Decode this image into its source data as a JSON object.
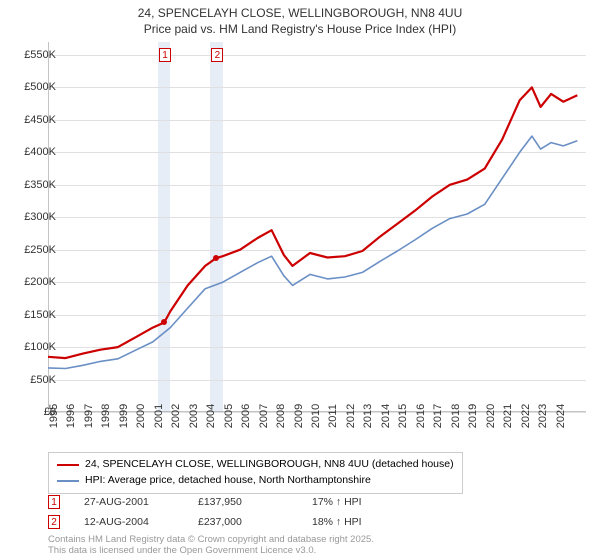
{
  "title_line1": "24, SPENCELAYH CLOSE, WELLINGBOROUGH, NN8 4UU",
  "title_line2": "Price paid vs. HM Land Registry's House Price Index (HPI)",
  "chart": {
    "type": "line",
    "background_color": "#ffffff",
    "grid_color": "#e0e0e0",
    "axis_color": "#888888",
    "x_range": [
      1995,
      2025.8
    ],
    "y_range": [
      0,
      570000
    ],
    "y_ticks": [
      0,
      50000,
      100000,
      150000,
      200000,
      250000,
      300000,
      350000,
      400000,
      450000,
      500000,
      550000
    ],
    "y_tick_labels": [
      "£0",
      "£50K",
      "£100K",
      "£150K",
      "£200K",
      "£250K",
      "£300K",
      "£350K",
      "£400K",
      "£450K",
      "£500K",
      "£550K"
    ],
    "x_ticks": [
      1995,
      1996,
      1997,
      1998,
      1999,
      2000,
      2001,
      2002,
      2003,
      2004,
      2005,
      2006,
      2007,
      2008,
      2009,
      2010,
      2011,
      2012,
      2013,
      2014,
      2015,
      2016,
      2017,
      2018,
      2019,
      2020,
      2021,
      2022,
      2023,
      2024
    ],
    "x_tick_labels": [
      "1995",
      "1996",
      "1997",
      "1998",
      "1999",
      "2000",
      "2001",
      "2002",
      "2003",
      "2004",
      "2005",
      "2006",
      "2007",
      "2008",
      "2009",
      "2010",
      "2011",
      "2012",
      "2013",
      "2014",
      "2015",
      "2016",
      "2017",
      "2018",
      "2019",
      "2020",
      "2021",
      "2022",
      "2023",
      "2024"
    ],
    "series": [
      {
        "name": "price_paid",
        "label": "24, SPENCELAYH CLOSE, WELLINGBOROUGH, NN8 4UU (detached house)",
        "color": "#cc0000",
        "width": 2.2,
        "points": [
          [
            1995.0,
            85000
          ],
          [
            1996.0,
            83000
          ],
          [
            1997.0,
            90000
          ],
          [
            1998.0,
            96000
          ],
          [
            1999.0,
            100000
          ],
          [
            2000.0,
            115000
          ],
          [
            2001.0,
            130000
          ],
          [
            2001.65,
            137950
          ],
          [
            2002.0,
            155000
          ],
          [
            2003.0,
            195000
          ],
          [
            2004.0,
            225000
          ],
          [
            2004.62,
            237000
          ],
          [
            2005.0,
            240000
          ],
          [
            2006.0,
            250000
          ],
          [
            2007.0,
            268000
          ],
          [
            2007.8,
            280000
          ],
          [
            2008.5,
            242000
          ],
          [
            2009.0,
            225000
          ],
          [
            2010.0,
            245000
          ],
          [
            2011.0,
            238000
          ],
          [
            2012.0,
            240000
          ],
          [
            2013.0,
            248000
          ],
          [
            2014.0,
            270000
          ],
          [
            2015.0,
            290000
          ],
          [
            2016.0,
            310000
          ],
          [
            2017.0,
            332000
          ],
          [
            2018.0,
            350000
          ],
          [
            2019.0,
            358000
          ],
          [
            2020.0,
            375000
          ],
          [
            2021.0,
            420000
          ],
          [
            2022.0,
            480000
          ],
          [
            2022.7,
            500000
          ],
          [
            2023.2,
            470000
          ],
          [
            2023.8,
            490000
          ],
          [
            2024.5,
            478000
          ],
          [
            2025.3,
            488000
          ]
        ]
      },
      {
        "name": "hpi",
        "label": "HPI: Average price, detached house, North Northamptonshire",
        "color": "#6a8fc5",
        "width": 1.6,
        "points": [
          [
            1995.0,
            68000
          ],
          [
            1996.0,
            67000
          ],
          [
            1997.0,
            72000
          ],
          [
            1998.0,
            78000
          ],
          [
            1999.0,
            82000
          ],
          [
            2000.0,
            95000
          ],
          [
            2001.0,
            108000
          ],
          [
            2002.0,
            130000
          ],
          [
            2003.0,
            160000
          ],
          [
            2004.0,
            190000
          ],
          [
            2005.0,
            200000
          ],
          [
            2006.0,
            215000
          ],
          [
            2007.0,
            230000
          ],
          [
            2007.8,
            240000
          ],
          [
            2008.5,
            210000
          ],
          [
            2009.0,
            195000
          ],
          [
            2010.0,
            212000
          ],
          [
            2011.0,
            205000
          ],
          [
            2012.0,
            208000
          ],
          [
            2013.0,
            215000
          ],
          [
            2014.0,
            232000
          ],
          [
            2015.0,
            248000
          ],
          [
            2016.0,
            265000
          ],
          [
            2017.0,
            283000
          ],
          [
            2018.0,
            298000
          ],
          [
            2019.0,
            305000
          ],
          [
            2020.0,
            320000
          ],
          [
            2021.0,
            360000
          ],
          [
            2022.0,
            400000
          ],
          [
            2022.7,
            425000
          ],
          [
            2023.2,
            405000
          ],
          [
            2023.8,
            415000
          ],
          [
            2024.5,
            410000
          ],
          [
            2025.3,
            418000
          ]
        ]
      }
    ],
    "annotation_bands": [
      {
        "x_start": 2001.3,
        "x_end": 2002.0,
        "marker": "1"
      },
      {
        "x_start": 2004.3,
        "x_end": 2005.0,
        "marker": "2"
      }
    ],
    "sale_points": [
      {
        "x": 2001.65,
        "y": 137950
      },
      {
        "x": 2004.62,
        "y": 237000
      }
    ]
  },
  "legend": {
    "items": [
      {
        "color": "#cc0000",
        "label": "24, SPENCELAYH CLOSE, WELLINGBOROUGH, NN8 4UU (detached house)"
      },
      {
        "color": "#6a8fc5",
        "label": "HPI: Average price, detached house, North Northamptonshire"
      }
    ]
  },
  "annotations_table": [
    {
      "marker": "1",
      "date": "27-AUG-2001",
      "price": "£137,950",
      "delta": "17% ↑ HPI"
    },
    {
      "marker": "2",
      "date": "12-AUG-2004",
      "price": "£237,000",
      "delta": "18% ↑ HPI"
    }
  ],
  "footer_line1": "Contains HM Land Registry data © Crown copyright and database right 2025.",
  "footer_line2": "This data is licensed under the Open Government Licence v3.0."
}
